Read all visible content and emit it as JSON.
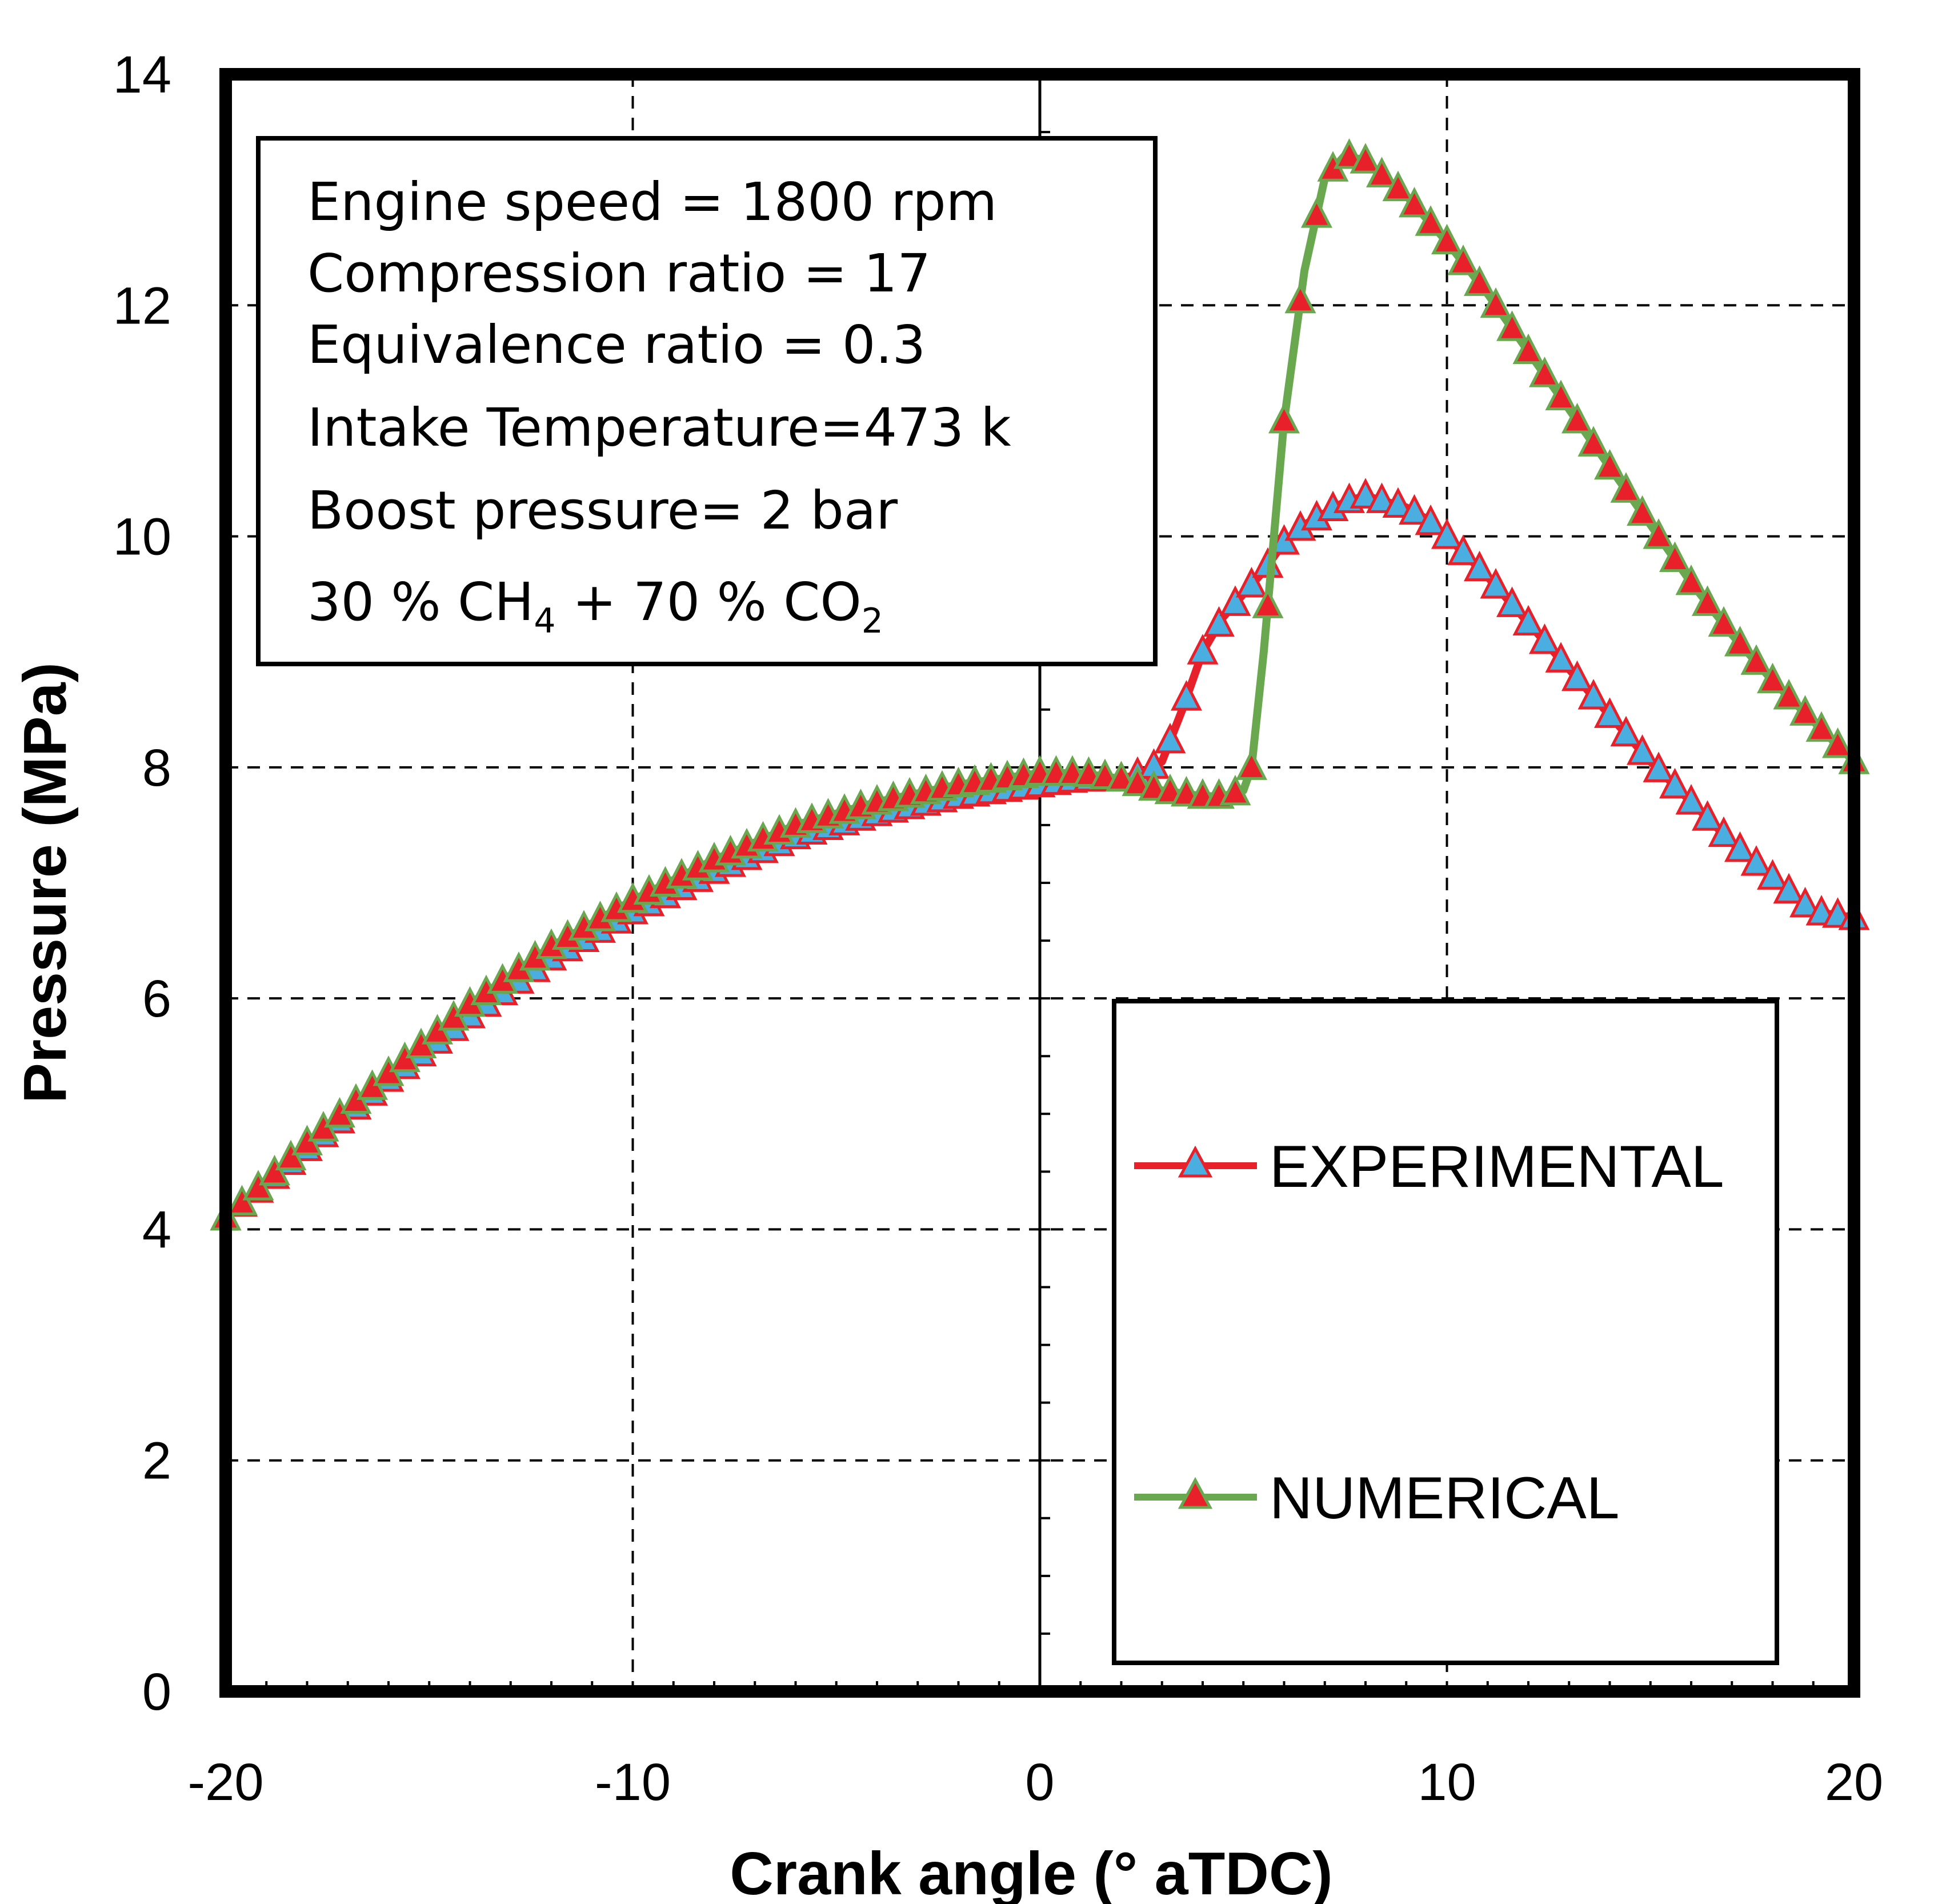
{
  "chart_data": {
    "type": "line",
    "xlabel": "Crank angle (° aTDC)",
    "ylabel": "Pressure (MPa)",
    "xlim": [
      -20,
      20
    ],
    "ylim": [
      0,
      14
    ],
    "xticks": [
      "-20",
      "-10",
      "0",
      "10",
      "20"
    ],
    "yticks": [
      "0",
      "2",
      "4",
      "6",
      "8",
      "10",
      "12",
      "14"
    ],
    "grid": true,
    "legend_position": "bottom-right",
    "annotation": {
      "lines": [
        "Engine speed = 1800 rpm",
        "Compression ratio = 17",
        "Equivalence ratio = 0.3",
        "Intake Temperature=473 k",
        "Boost pressure= 2 bar"
      ],
      "composition": {
        "part1": "30 % CH",
        "sub1": "4",
        "part2": " + 70 % CO",
        "sub2": "2"
      }
    },
    "series": [
      {
        "name": "EXPERIMENTAL",
        "line_color": "#e8202a",
        "marker_color": "#4aaee0",
        "x": [
          -20,
          -18,
          -16,
          -14,
          -12,
          -10,
          -8,
          -6,
          -4,
          -2,
          0,
          1,
          2,
          2.5,
          3,
          3.5,
          4,
          4.5,
          5,
          5.5,
          6,
          6.5,
          7,
          7.5,
          8,
          8.5,
          9,
          9.5,
          10,
          11,
          12,
          13,
          14,
          15,
          16,
          17,
          18,
          19,
          20
        ],
        "y": [
          4.1,
          4.7,
          5.3,
          5.85,
          6.35,
          6.75,
          7.1,
          7.4,
          7.6,
          7.75,
          7.85,
          7.9,
          7.9,
          7.95,
          8.05,
          8.5,
          9.0,
          9.3,
          9.5,
          9.7,
          9.95,
          10.1,
          10.2,
          10.3,
          10.35,
          10.3,
          10.25,
          10.15,
          10.0,
          9.65,
          9.25,
          8.85,
          8.45,
          8.05,
          7.7,
          7.35,
          7.05,
          6.75,
          6.7
        ]
      },
      {
        "name": "NUMERICAL",
        "line_color": "#6aa84f",
        "marker_color": "#e8202a",
        "x": [
          -20,
          -18,
          -16,
          -14,
          -12,
          -10,
          -8,
          -6,
          -4,
          -2,
          0,
          1,
          2,
          3,
          4,
          4.5,
          5,
          5.2,
          5.5,
          5.8,
          6,
          6.5,
          7,
          7.5,
          8,
          8.5,
          9,
          10,
          11,
          12,
          13,
          14,
          15,
          16,
          17,
          18,
          19,
          20
        ],
        "y": [
          4.1,
          4.75,
          5.35,
          5.95,
          6.45,
          6.85,
          7.2,
          7.5,
          7.7,
          7.85,
          7.95,
          7.95,
          7.9,
          7.8,
          7.75,
          7.75,
          7.8,
          8.0,
          9.0,
          10.2,
          11.0,
          12.3,
          13.1,
          13.3,
          13.25,
          13.1,
          12.95,
          12.55,
          12.1,
          11.6,
          11.1,
          10.6,
          10.1,
          9.6,
          9.15,
          8.75,
          8.4,
          8.05
        ]
      }
    ]
  }
}
